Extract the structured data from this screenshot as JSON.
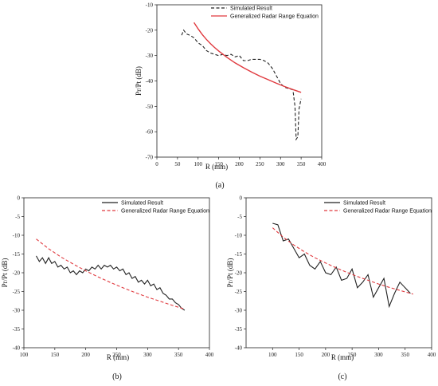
{
  "chart_data": [
    {
      "panel_label": "(a)",
      "type": "line",
      "xlabel": "R (mm)",
      "ylabel": "Pr/Pt (dB)",
      "xlim": [
        0,
        400
      ],
      "ylim": [
        -70,
        -10
      ],
      "xticks": [
        0,
        50,
        100,
        150,
        200,
        250,
        300,
        350,
        400
      ],
      "yticks": [
        -70,
        -60,
        -50,
        -40,
        -30,
        -20,
        -10
      ],
      "legend_position": "top-right",
      "series": [
        {
          "name": "Simulated Result",
          "style": "dashed",
          "color": "#222222",
          "x": [
            60,
            65,
            72,
            80,
            90,
            100,
            110,
            120,
            130,
            140,
            150,
            160,
            170,
            180,
            190,
            200,
            210,
            220,
            230,
            240,
            250,
            260,
            270,
            280,
            290,
            300,
            310,
            320,
            330,
            335,
            338,
            342,
            345,
            350
          ],
          "y": [
            -22,
            -20,
            -21.5,
            -22,
            -23,
            -25,
            -26,
            -28,
            -29,
            -29.5,
            -30,
            -29.5,
            -30,
            -29.5,
            -30.5,
            -30,
            -32,
            -32,
            -31.5,
            -31.5,
            -31.5,
            -32,
            -33,
            -35,
            -38,
            -41,
            -42.5,
            -43,
            -43.5,
            -50,
            -63,
            -62,
            -51,
            -47
          ]
        },
        {
          "name": "Generalized Radar Range Equation",
          "style": "solid",
          "color": "#e0393e",
          "x": [
            90,
            100,
            110,
            120,
            130,
            140,
            150,
            170,
            190,
            210,
            230,
            250,
            270,
            290,
            310,
            330,
            350
          ],
          "y": [
            -17,
            -19.5,
            -21.7,
            -23.6,
            -25.3,
            -26.8,
            -28.2,
            -30.7,
            -32.9,
            -34.8,
            -36.5,
            -38.1,
            -39.5,
            -40.9,
            -42.2,
            -43.4,
            -44.5
          ]
        }
      ]
    },
    {
      "panel_label": "(b)",
      "type": "line",
      "xlabel": "R (mm)",
      "ylabel": "Pr/Pt (dB)",
      "xlim": [
        100,
        400
      ],
      "ylim": [
        -40,
        0
      ],
      "xticks": [
        100,
        150,
        200,
        250,
        300,
        350,
        400
      ],
      "yticks": [
        -40,
        -35,
        -30,
        -25,
        -20,
        -15,
        -10,
        -5,
        0
      ],
      "legend_position": "top-right",
      "series": [
        {
          "name": "Simulated Result",
          "style": "solid",
          "color": "#222222",
          "x": [
            120,
            125,
            130,
            135,
            140,
            145,
            150,
            155,
            160,
            165,
            170,
            175,
            180,
            185,
            190,
            195,
            200,
            205,
            210,
            215,
            220,
            225,
            230,
            235,
            240,
            245,
            250,
            255,
            260,
            265,
            270,
            275,
            280,
            285,
            290,
            295,
            300,
            305,
            310,
            315,
            320,
            325,
            330,
            335,
            340,
            345,
            350,
            355,
            360
          ],
          "y": [
            -15.5,
            -17,
            -16,
            -17.5,
            -16,
            -17.5,
            -17,
            -18.5,
            -18,
            -19,
            -18.5,
            -20,
            -19.5,
            -20.5,
            -19.5,
            -20,
            -19,
            -19.5,
            -18.5,
            -19,
            -18,
            -19,
            -18,
            -18.5,
            -18,
            -19,
            -18.5,
            -19.5,
            -19,
            -20.5,
            -20,
            -21.5,
            -21,
            -22.5,
            -22,
            -23,
            -22,
            -23.5,
            -23,
            -24.5,
            -24,
            -25.5,
            -26,
            -27,
            -27,
            -28,
            -28.5,
            -29.5,
            -30
          ]
        },
        {
          "name": "Generalized Radar Range Equation",
          "style": "dashed",
          "color": "#e0393e",
          "x": [
            120,
            140,
            160,
            180,
            200,
            220,
            240,
            260,
            280,
            300,
            320,
            340,
            360
          ],
          "y": [
            -11,
            -13.6,
            -15.8,
            -17.7,
            -19.5,
            -21.1,
            -22.6,
            -24,
            -25.3,
            -26.5,
            -27.6,
            -28.7,
            -29.7
          ]
        }
      ]
    },
    {
      "panel_label": "(c)",
      "type": "line",
      "xlabel": "R (mm)",
      "ylabel": "Pr/Pt (dB)",
      "xlim": [
        50,
        400
      ],
      "ylim": [
        -40,
        0
      ],
      "xticks": [
        100,
        150,
        200,
        250,
        300,
        350,
        400
      ],
      "yticks": [
        -40,
        -35,
        -30,
        -25,
        -20,
        -15,
        -10,
        -5,
        0
      ],
      "legend_position": "top-right",
      "series": [
        {
          "name": "Simulated Result",
          "style": "solid",
          "color": "#222222",
          "x": [
            100,
            110,
            120,
            130,
            140,
            150,
            160,
            170,
            180,
            190,
            200,
            210,
            220,
            230,
            240,
            250,
            260,
            270,
            280,
            290,
            300,
            310,
            320,
            330,
            340,
            350,
            360
          ],
          "y": [
            -6.8,
            -7.2,
            -11.5,
            -11,
            -13.5,
            -16,
            -15,
            -18,
            -19,
            -17,
            -20,
            -20.5,
            -18.5,
            -22,
            -21.5,
            -19,
            -24,
            -22.5,
            -20.5,
            -26.5,
            -24,
            -21.5,
            -29,
            -25.5,
            -22.5,
            -24,
            -25.5
          ]
        },
        {
          "name": "Generalized Radar Range Equation",
          "style": "dashed",
          "color": "#e0393e",
          "x": [
            100,
            120,
            140,
            160,
            180,
            200,
            220,
            240,
            260,
            280,
            300,
            320,
            340,
            365
          ],
          "y": [
            -8,
            -10.5,
            -12.6,
            -14.4,
            -16,
            -17.4,
            -18.7,
            -19.9,
            -21,
            -22,
            -23,
            -23.9,
            -24.7,
            -25.7
          ]
        }
      ]
    }
  ]
}
